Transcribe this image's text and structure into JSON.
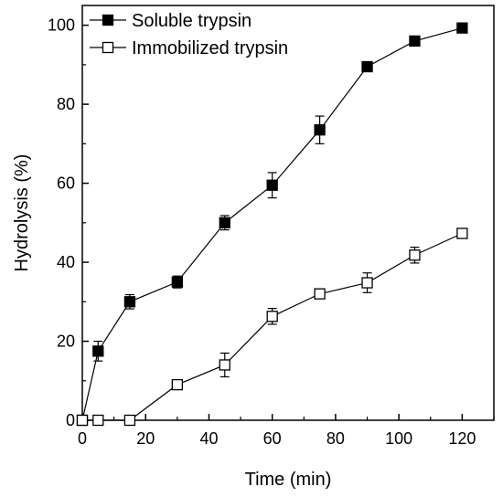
{
  "chart_data": {
    "type": "line",
    "title": "",
    "xlabel": "Time (min)",
    "ylabel": "Hydrolysis (%)",
    "xlim": [
      0,
      130
    ],
    "ylim": [
      0,
      105
    ],
    "xticks": [
      0,
      20,
      40,
      60,
      80,
      100,
      120
    ],
    "yticks": [
      0,
      20,
      40,
      60,
      80,
      100
    ],
    "x_tick_labels": [
      "0",
      "20",
      "40",
      "60",
      "80",
      "100",
      "120"
    ],
    "y_tick_labels": [
      "0",
      "20",
      "40",
      "60",
      "80",
      "100"
    ],
    "grid": false,
    "legend_position": "top-left",
    "series": [
      {
        "name": "Soluble trypsin",
        "marker": "filled-square",
        "color": "#000000",
        "x": [
          0,
          5,
          15,
          30,
          45,
          60,
          75,
          90,
          105,
          120
        ],
        "y": [
          0,
          17.5,
          30,
          35,
          50,
          59.5,
          73.5,
          89.5,
          96,
          99.3
        ],
        "error": [
          0,
          2.5,
          1.8,
          1.5,
          1.8,
          3.2,
          3.5,
          0,
          0,
          1
        ]
      },
      {
        "name": "Immobilized trypsin",
        "marker": "open-square",
        "color": "#000000",
        "x": [
          0,
          5,
          15,
          30,
          45,
          60,
          75,
          90,
          105,
          120
        ],
        "y": [
          0,
          0,
          0,
          9,
          14,
          26.3,
          32,
          34.8,
          41.8,
          47.3
        ],
        "error": [
          0,
          0,
          0,
          0.8,
          3,
          2,
          0,
          2.5,
          2,
          1
        ]
      }
    ]
  }
}
